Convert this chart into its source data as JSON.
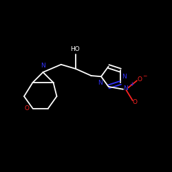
{
  "bg_color": "#000000",
  "bond_color": "#ffffff",
  "N_color": "#3333ff",
  "O_color": "#ff2222",
  "figsize": [
    2.5,
    2.5
  ],
  "dpi": 100,
  "xlim": [
    0,
    10
  ],
  "ylim": [
    0,
    10
  ]
}
